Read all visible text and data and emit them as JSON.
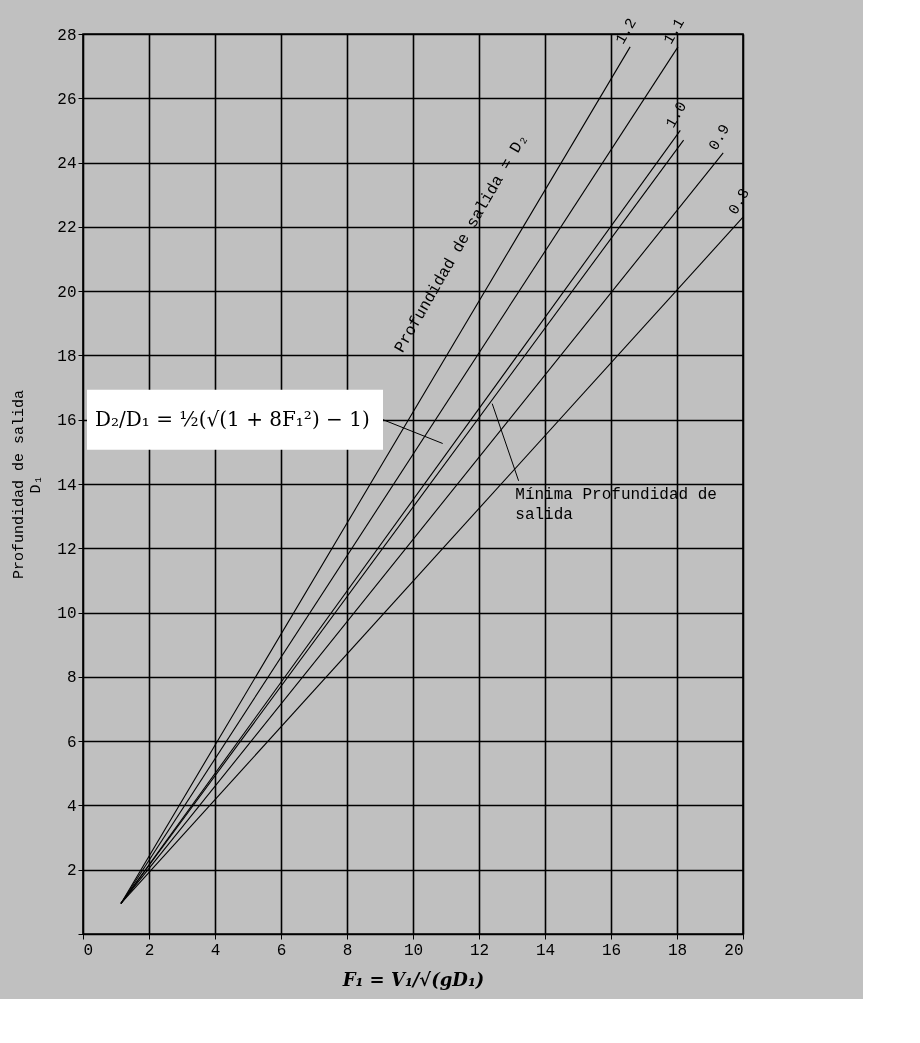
{
  "chart_data": {
    "type": "line",
    "xlabel": "F₁ = V₁/√(gD₁)",
    "ylabel": "Profundidad de salida\nD₁",
    "xlim": [
      0,
      20
    ],
    "xticks": [
      0,
      2,
      4,
      6,
      8,
      10,
      12,
      14,
      16,
      18,
      20
    ],
    "ylim": [
      0,
      28
    ],
    "yticks": [
      {
        "value": 0,
        "label": null
      },
      2,
      4,
      6,
      8,
      10,
      12,
      14,
      16,
      18,
      20,
      22,
      24,
      26,
      28
    ],
    "grid": true,
    "legend": false,
    "line_style": "solid",
    "marker": "none",
    "series": [
      {
        "name": "1.2",
        "color": "#000000",
        "x": [
          1.15,
          16.58
        ],
        "values": [
          0.95,
          27.6
        ]
      },
      {
        "name": "1.1",
        "color": "#000000",
        "x": [
          1.15,
          18.03
        ],
        "values": [
          0.95,
          27.6
        ]
      },
      {
        "name": "1.0",
        "color": "#000000",
        "x": [
          1.15,
          18.1
        ],
        "values": [
          0.95,
          25.0
        ]
      },
      {
        "color": "#000000",
        "x": [
          1.15,
          18.2
        ],
        "values": [
          0.95,
          24.7
        ]
      },
      {
        "name": "0.9",
        "color": "#000000",
        "x": [
          1.15,
          19.4
        ],
        "values": [
          0.95,
          24.3
        ]
      },
      {
        "name": "0.8",
        "color": "#000000",
        "x": [
          1.15,
          20.0
        ],
        "values": [
          0.95,
          22.3
        ]
      }
    ],
    "annotations": [
      "Profundidad de salida = D₂",
      "D₂/D₁ = ½(√(1 + 8F₁²) − 1)",
      {
        "text": "Mínima Profundidad de salida",
        "x": 12.4,
        "y": 16.5
      }
    ]
  }
}
